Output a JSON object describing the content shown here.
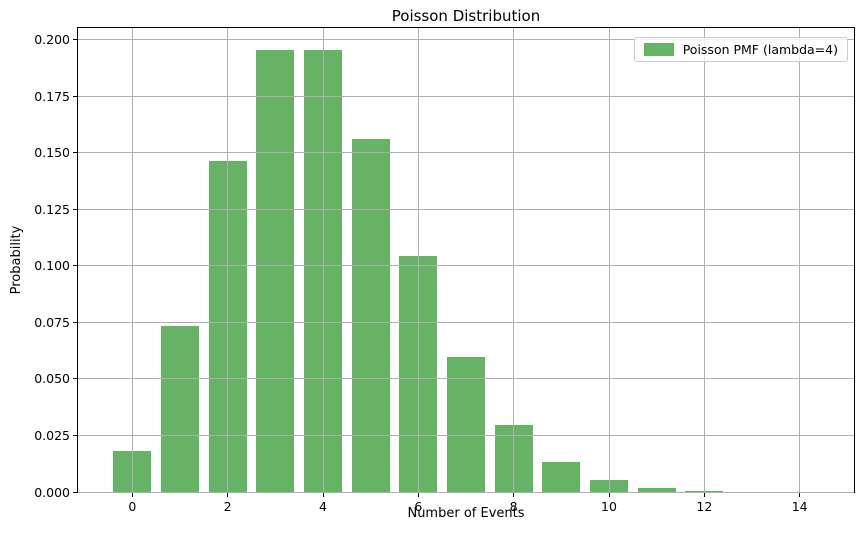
{
  "chart_data": {
    "type": "bar",
    "title": "Poisson Distribution",
    "xlabel": "Number of Events",
    "ylabel": "Probability",
    "legend": {
      "label": "Poisson PMF (lambda=4)",
      "position": "upper right"
    },
    "bar_color": "#66b366",
    "grid": true,
    "grid_color": "#b0b0b0",
    "background_color": "#ffffff",
    "bar_width": 0.8,
    "categories": [
      0,
      1,
      2,
      3,
      4,
      5,
      6,
      7,
      8,
      9,
      10,
      11,
      12,
      13,
      14
    ],
    "values": [
      0.018316,
      0.073263,
      0.146525,
      0.195367,
      0.195367,
      0.156293,
      0.104196,
      0.05954,
      0.02977,
      0.013231,
      0.005292,
      0.001925,
      0.000642,
      0.000197,
      5.6e-05
    ],
    "xlim": [
      -1.14,
      15.14
    ],
    "ylim": [
      0,
      0.2052
    ],
    "xticks": [
      0,
      2,
      4,
      6,
      8,
      10,
      12,
      14
    ],
    "xtick_labels": [
      "0",
      "2",
      "4",
      "6",
      "8",
      "10",
      "12",
      "14"
    ],
    "yticks": [
      0,
      0.025,
      0.05,
      0.075,
      0.1,
      0.125,
      0.15,
      0.175,
      0.2
    ],
    "ytick_labels": [
      "0.000",
      "0.025",
      "0.050",
      "0.075",
      "0.100",
      "0.125",
      "0.150",
      "0.175",
      "0.200"
    ]
  }
}
